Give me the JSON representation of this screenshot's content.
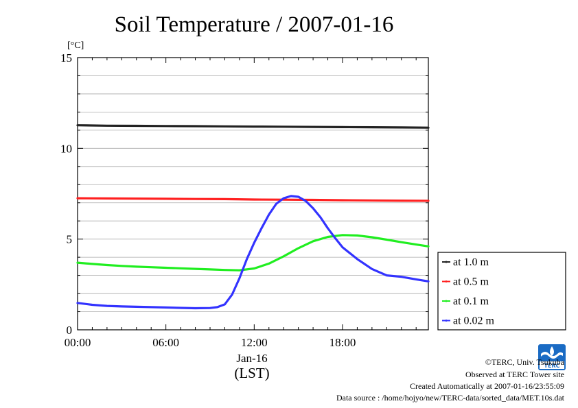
{
  "chart_data": {
    "type": "line",
    "title": "Soil Temperature / 2007-01-16",
    "ylabel": "[°C]",
    "xlabel": "(LST)",
    "date_label": "Jan-16",
    "ylim": [
      0,
      15
    ],
    "xlim": [
      0,
      23.83
    ],
    "yticks": [
      0,
      5,
      10,
      15
    ],
    "ytick_labels": [
      "0",
      "5",
      "10",
      "15"
    ],
    "xticks": [
      0,
      6,
      12,
      18
    ],
    "xtick_labels": [
      "00:00",
      "06:00",
      "12:00",
      "18:00"
    ],
    "grid": true,
    "legend_position": "right",
    "series": [
      {
        "name": "at 1.0 m",
        "color": "#222222",
        "x": [
          0,
          2,
          4,
          6,
          8,
          10,
          12,
          14,
          16,
          18,
          20,
          22,
          23.83
        ],
        "y": [
          11.27,
          11.25,
          11.24,
          11.23,
          11.22,
          11.21,
          11.2,
          11.19,
          11.18,
          11.17,
          11.16,
          11.15,
          11.14
        ]
      },
      {
        "name": "at 0.5 m",
        "color": "#ff2020",
        "x": [
          0,
          2,
          4,
          6,
          8,
          10,
          12,
          14,
          16,
          18,
          20,
          22,
          23.83
        ],
        "y": [
          7.25,
          7.24,
          7.23,
          7.22,
          7.21,
          7.2,
          7.18,
          7.17,
          7.16,
          7.14,
          7.13,
          7.12,
          7.11
        ]
      },
      {
        "name": "at 0.1 m",
        "color": "#20ee20",
        "x": [
          0,
          1,
          2,
          3,
          4,
          5,
          6,
          7,
          8,
          9,
          10,
          11,
          12,
          13,
          14,
          15,
          16,
          17,
          18,
          19,
          20,
          21,
          22,
          23,
          23.83
        ],
        "y": [
          3.7,
          3.63,
          3.57,
          3.52,
          3.48,
          3.45,
          3.42,
          3.39,
          3.36,
          3.33,
          3.3,
          3.28,
          3.38,
          3.65,
          4.05,
          4.5,
          4.88,
          5.12,
          5.22,
          5.2,
          5.1,
          4.97,
          4.83,
          4.7,
          4.6
        ]
      },
      {
        "name": "at 0.02 m",
        "color": "#3333ff",
        "x": [
          0,
          1,
          2,
          3,
          4,
          5,
          6,
          7,
          8,
          9,
          9.5,
          10,
          10.5,
          11,
          11.5,
          12,
          12.5,
          13,
          13.5,
          14,
          14.5,
          15,
          15.5,
          16,
          16.5,
          17,
          17.5,
          18,
          19,
          20,
          21,
          22,
          23,
          23.83
        ],
        "y": [
          1.48,
          1.38,
          1.32,
          1.29,
          1.27,
          1.25,
          1.23,
          1.21,
          1.19,
          1.2,
          1.25,
          1.4,
          1.95,
          2.85,
          3.9,
          4.8,
          5.6,
          6.35,
          6.95,
          7.25,
          7.37,
          7.33,
          7.1,
          6.7,
          6.2,
          5.6,
          5.05,
          4.55,
          3.9,
          3.35,
          3.0,
          2.92,
          2.78,
          2.67
        ]
      }
    ]
  },
  "logo_text": "TERC",
  "footer": {
    "line1": "©TERC, Univ. Tsukuba",
    "line2": "Observed at TERC Tower site",
    "line3": "Created Automatically at 2007-01-16/23:55:09",
    "line4": "Data source : /home/hojyo/new/TERC-data/sorted_data/MET.10s.dat"
  }
}
